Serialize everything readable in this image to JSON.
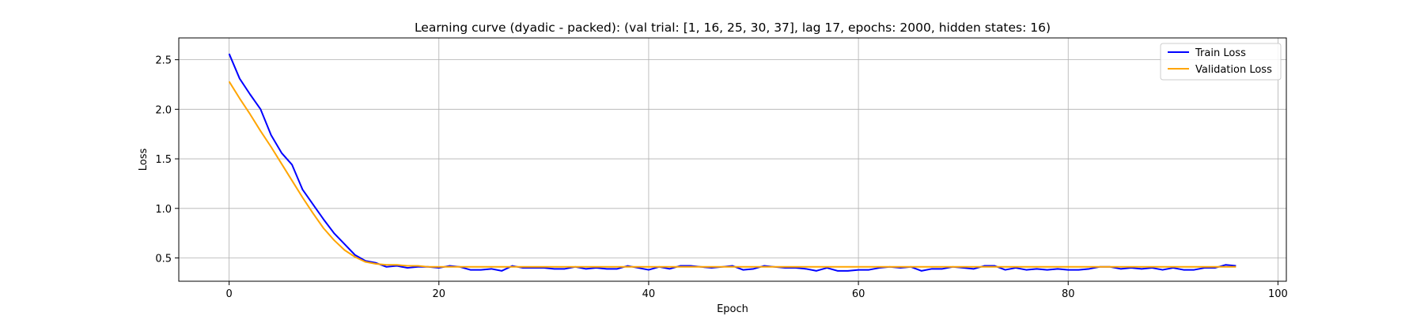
{
  "chart_data": {
    "type": "line",
    "title": "Learning curve (dyadic - packed): (val trial: [1, 16, 25, 30, 37], lag 17, epochs: 2000, hidden states: 16)",
    "xlabel": "Epoch",
    "ylabel": "Loss",
    "xlim": [
      -4.8,
      100.8
    ],
    "ylim": [
      0.265,
      2.72
    ],
    "xticks": [
      0,
      20,
      40,
      60,
      80,
      100
    ],
    "yticks": [
      0.5,
      1.0,
      1.5,
      2.0,
      2.5
    ],
    "xtick_labels": [
      "0",
      "20",
      "40",
      "60",
      "80",
      "100"
    ],
    "ytick_labels": [
      "0.5",
      "1.0",
      "1.5",
      "2.0",
      "2.5"
    ],
    "grid": true,
    "legend_position": "top-right",
    "series": [
      {
        "name": "Train Loss",
        "color": "#0000ff",
        "values": [
          2.56,
          2.31,
          2.15,
          2.0,
          1.74,
          1.56,
          1.44,
          1.19,
          1.04,
          0.89,
          0.75,
          0.64,
          0.53,
          0.47,
          0.45,
          0.41,
          0.42,
          0.4,
          0.41,
          0.41,
          0.4,
          0.42,
          0.41,
          0.38,
          0.38,
          0.39,
          0.37,
          0.42,
          0.4,
          0.4,
          0.4,
          0.39,
          0.39,
          0.41,
          0.39,
          0.4,
          0.39,
          0.39,
          0.42,
          0.4,
          0.38,
          0.41,
          0.39,
          0.42,
          0.42,
          0.41,
          0.4,
          0.41,
          0.42,
          0.38,
          0.39,
          0.42,
          0.41,
          0.4,
          0.4,
          0.39,
          0.37,
          0.4,
          0.37,
          0.37,
          0.38,
          0.38,
          0.4,
          0.41,
          0.4,
          0.41,
          0.37,
          0.39,
          0.39,
          0.41,
          0.4,
          0.39,
          0.42,
          0.42,
          0.38,
          0.4,
          0.38,
          0.39,
          0.38,
          0.39,
          0.38,
          0.38,
          0.39,
          0.41,
          0.41,
          0.39,
          0.4,
          0.39,
          0.4,
          0.38,
          0.4,
          0.38,
          0.38,
          0.4,
          0.4,
          0.43,
          0.42
        ]
      },
      {
        "name": "Validation Loss",
        "color": "#ffa500",
        "values": [
          2.28,
          2.11,
          1.95,
          1.78,
          1.62,
          1.45,
          1.28,
          1.11,
          0.95,
          0.8,
          0.68,
          0.58,
          0.51,
          0.46,
          0.44,
          0.43,
          0.43,
          0.42,
          0.42,
          0.41,
          0.41,
          0.41,
          0.41,
          0.41,
          0.41,
          0.41,
          0.41,
          0.41,
          0.41,
          0.41,
          0.41,
          0.41,
          0.41,
          0.41,
          0.41,
          0.41,
          0.41,
          0.41,
          0.41,
          0.41,
          0.41,
          0.41,
          0.41,
          0.41,
          0.41,
          0.41,
          0.41,
          0.41,
          0.41,
          0.41,
          0.41,
          0.41,
          0.41,
          0.41,
          0.41,
          0.41,
          0.41,
          0.41,
          0.41,
          0.41,
          0.41,
          0.41,
          0.41,
          0.41,
          0.41,
          0.41,
          0.41,
          0.41,
          0.41,
          0.41,
          0.41,
          0.41,
          0.41,
          0.41,
          0.41,
          0.41,
          0.41,
          0.41,
          0.41,
          0.41,
          0.41,
          0.41,
          0.41,
          0.41,
          0.41,
          0.41,
          0.41,
          0.41,
          0.41,
          0.41,
          0.41,
          0.41,
          0.41,
          0.41,
          0.41,
          0.41,
          0.41
        ]
      }
    ]
  }
}
